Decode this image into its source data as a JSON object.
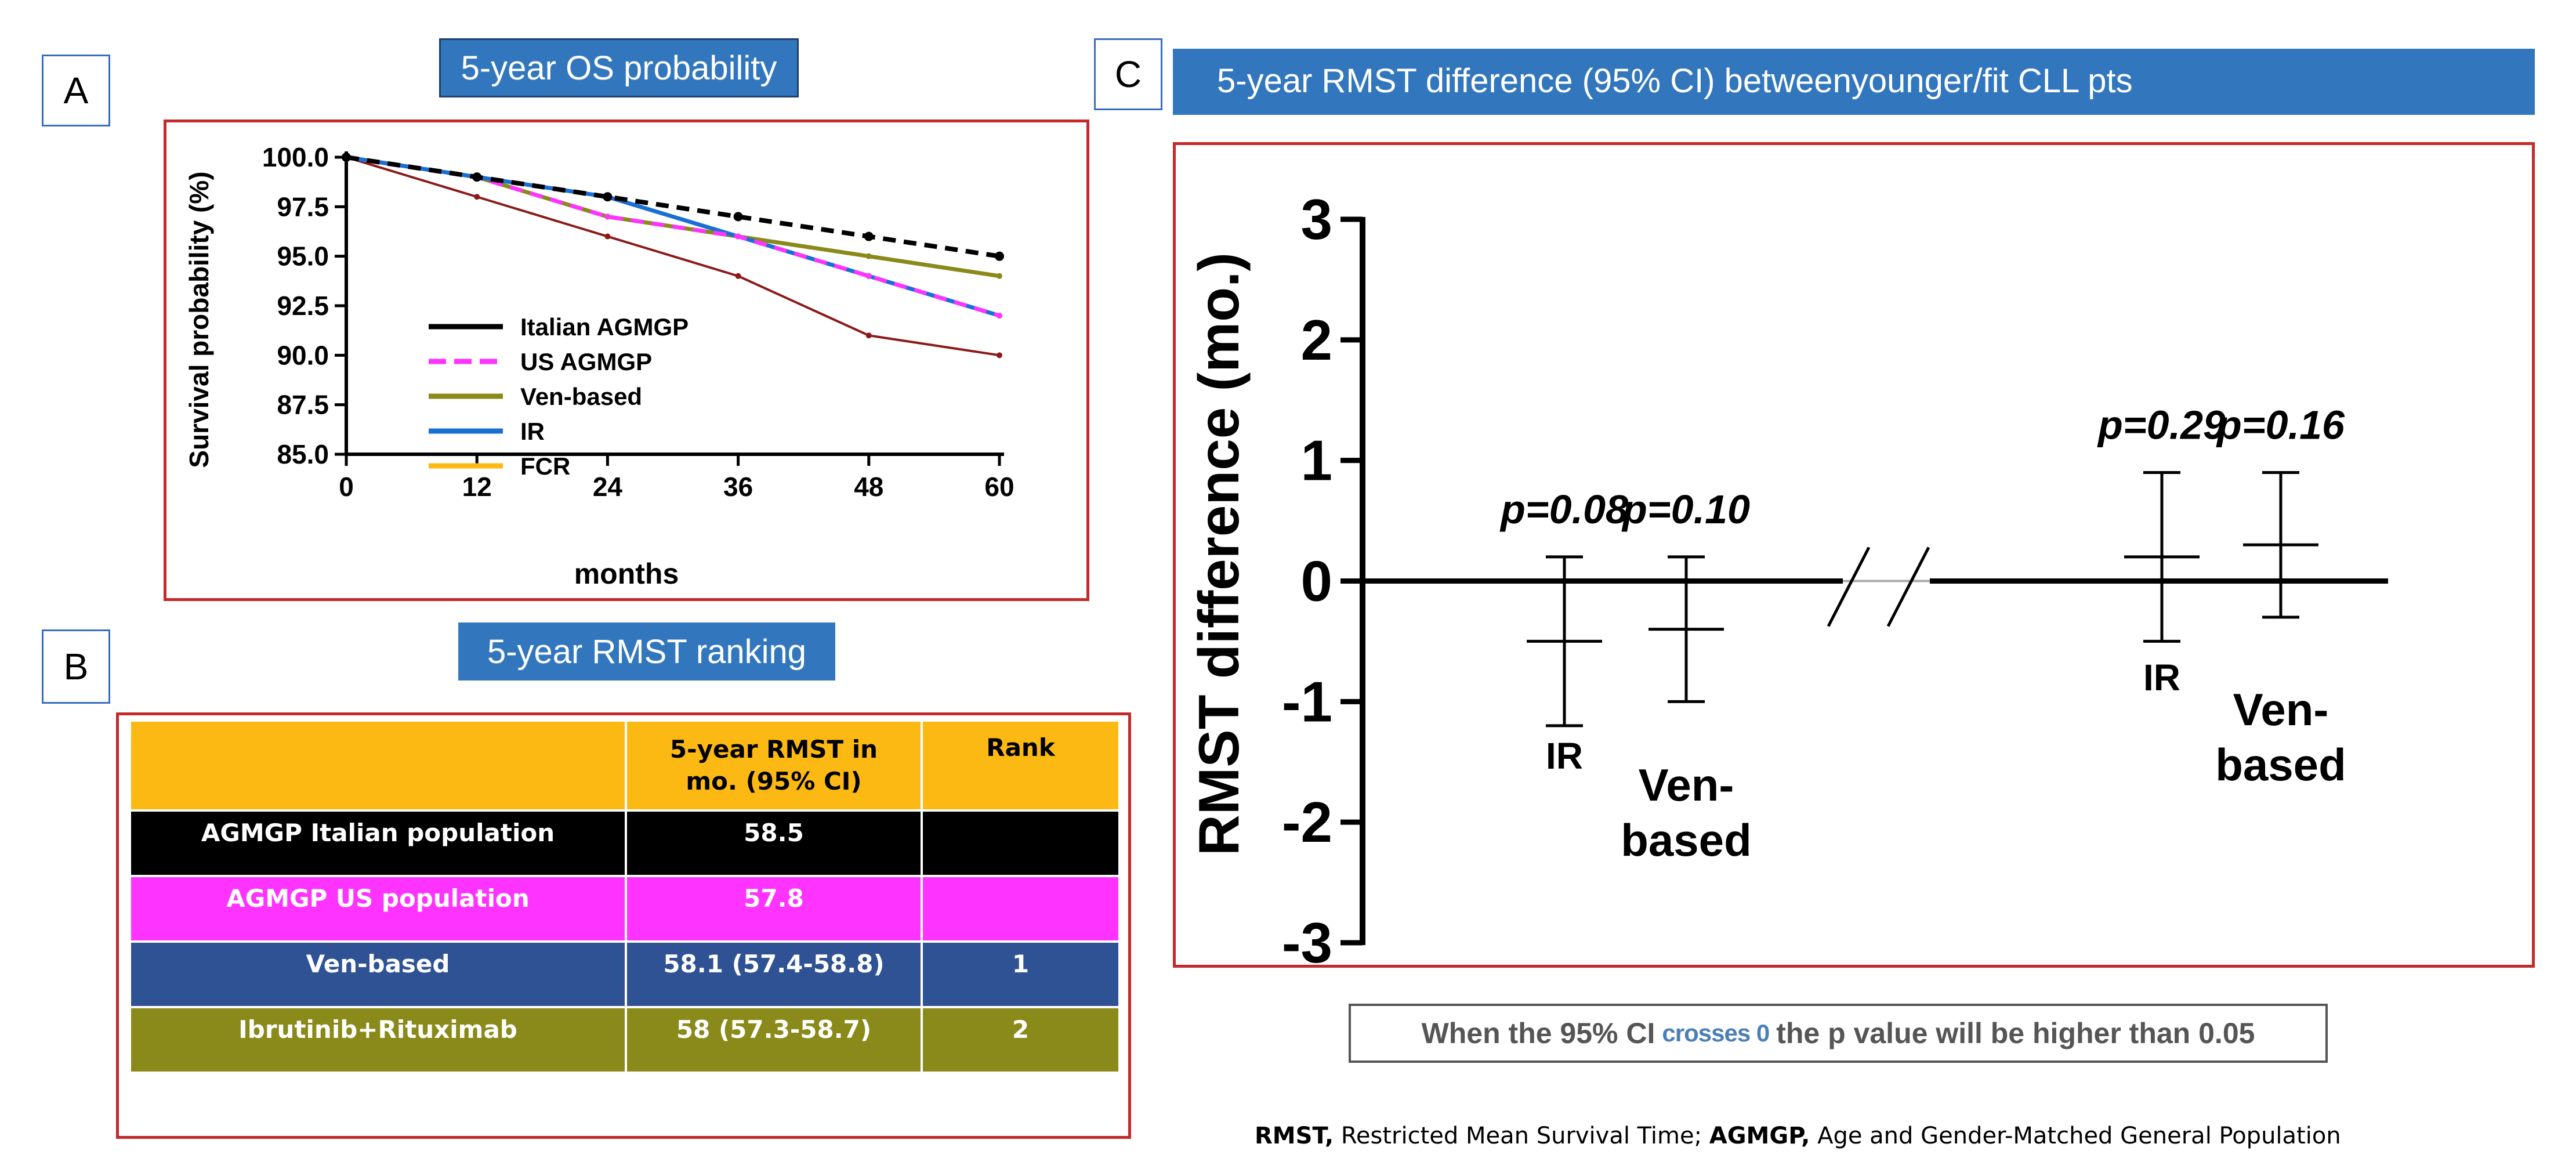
{
  "panel_a": {
    "letter": "A",
    "header": "5-year OS probability",
    "legend": [
      "Italian AGMGP",
      "US AGMGP",
      "Ven-based",
      "IR",
      "FCR"
    ]
  },
  "panel_b": {
    "letter": "B",
    "header": "5-year RMST  ranking",
    "table": {
      "headers": [
        "",
        "5-year RMST in mo. (95% CI)",
        "Rank"
      ],
      "rows": [
        {
          "label": "AGMGP Italian population",
          "rmst": "58.5",
          "rank": ""
        },
        {
          "label": "AGMGP US population",
          "rmst": "57.8",
          "rank": ""
        },
        {
          "label": "Ven-based",
          "rmst": "58.1 (57.4-58.8)",
          "rank": "1"
        },
        {
          "label": "Ibrutinib+Rituximab",
          "rmst": "58 (57.3-58.7)",
          "rank": "2"
        }
      ]
    }
  },
  "panel_c": {
    "letter": "C",
    "header": "5-year RMST  difference (95% CI) betweenyounger/fit CLL pts",
    "note": {
      "prefix": "When the 95% CI",
      "highlight": "crosses 0",
      "suffix": "the p value will be higher than 0.05"
    }
  },
  "footnote": {
    "rmst_abbr": "RMST,",
    "rmst_text": " Restricted Mean Survival Time; ",
    "agmgp_abbr": "AGMGP,",
    "agmgp_text": " Age and Gender-Matched General Population"
  },
  "colors": {
    "italian": "#000000",
    "us": "#ff33ff",
    "ven": "#8a8a1a",
    "ir": "#1a6fd4",
    "fcr": "#fdb913",
    "fcr_line": "#8b1a1a",
    "header_blue": "#3277bd",
    "red_border": "#c42a2a"
  },
  "chart_data": [
    {
      "type": "line",
      "title": "5-year OS probability",
      "xlabel": "months",
      "ylabel": "Survival probability (%)",
      "x": [
        0,
        12,
        24,
        36,
        48,
        60
      ],
      "xticks": [
        "0",
        "12",
        "24",
        "36",
        "48",
        "60"
      ],
      "yticks": [
        "85.0",
        "87.5",
        "90.0",
        "92.5",
        "95.0",
        "97.5",
        "100.0"
      ],
      "xlim": [
        0,
        60
      ],
      "ylim": [
        85,
        100
      ],
      "legend_position": "bottom-left",
      "series": [
        {
          "name": "Italian AGMGP",
          "key": "italian",
          "style": "dashed",
          "values": [
            100,
            99,
            98,
            97,
            96,
            95
          ]
        },
        {
          "name": "US AGMGP",
          "key": "us",
          "style": "dashed",
          "values": [
            100,
            99,
            97,
            96,
            94,
            92
          ]
        },
        {
          "name": "Ven-based",
          "key": "ven",
          "style": "solid",
          "values": [
            100,
            99,
            97,
            96,
            95,
            94
          ]
        },
        {
          "name": "IR",
          "key": "ir",
          "style": "solid",
          "values": [
            100,
            99,
            98,
            96,
            94,
            92
          ]
        },
        {
          "name": "FCR",
          "key": "fcr_line",
          "style": "solid",
          "values": [
            100,
            98,
            96,
            94,
            91,
            90
          ]
        }
      ]
    },
    {
      "type": "scatter",
      "title": "5-year RMST  difference (95% CI) betweenyounger/fit CLL pts",
      "ylabel": "RMST difference (mo.)",
      "ylim": [
        -3,
        3
      ],
      "yticks": [
        "-3",
        "-2",
        "-1",
        "0",
        "1",
        "2",
        "3"
      ],
      "axis_break": true,
      "points": [
        {
          "group": "IR",
          "value": -0.5,
          "ci": [
            -1.2,
            0.2
          ],
          "p": "p=0.08"
        },
        {
          "group": "Ven-\nbased",
          "value": -0.4,
          "ci": [
            -1.0,
            0.2
          ],
          "p": "p=0.10"
        },
        {
          "group": "IR",
          "value": 0.2,
          "ci": [
            -0.5,
            0.9
          ],
          "p": "p=0.29"
        },
        {
          "group": "Ven-\nbased",
          "value": 0.3,
          "ci": [
            -0.3,
            0.9
          ],
          "p": "p=0.16"
        }
      ]
    }
  ]
}
